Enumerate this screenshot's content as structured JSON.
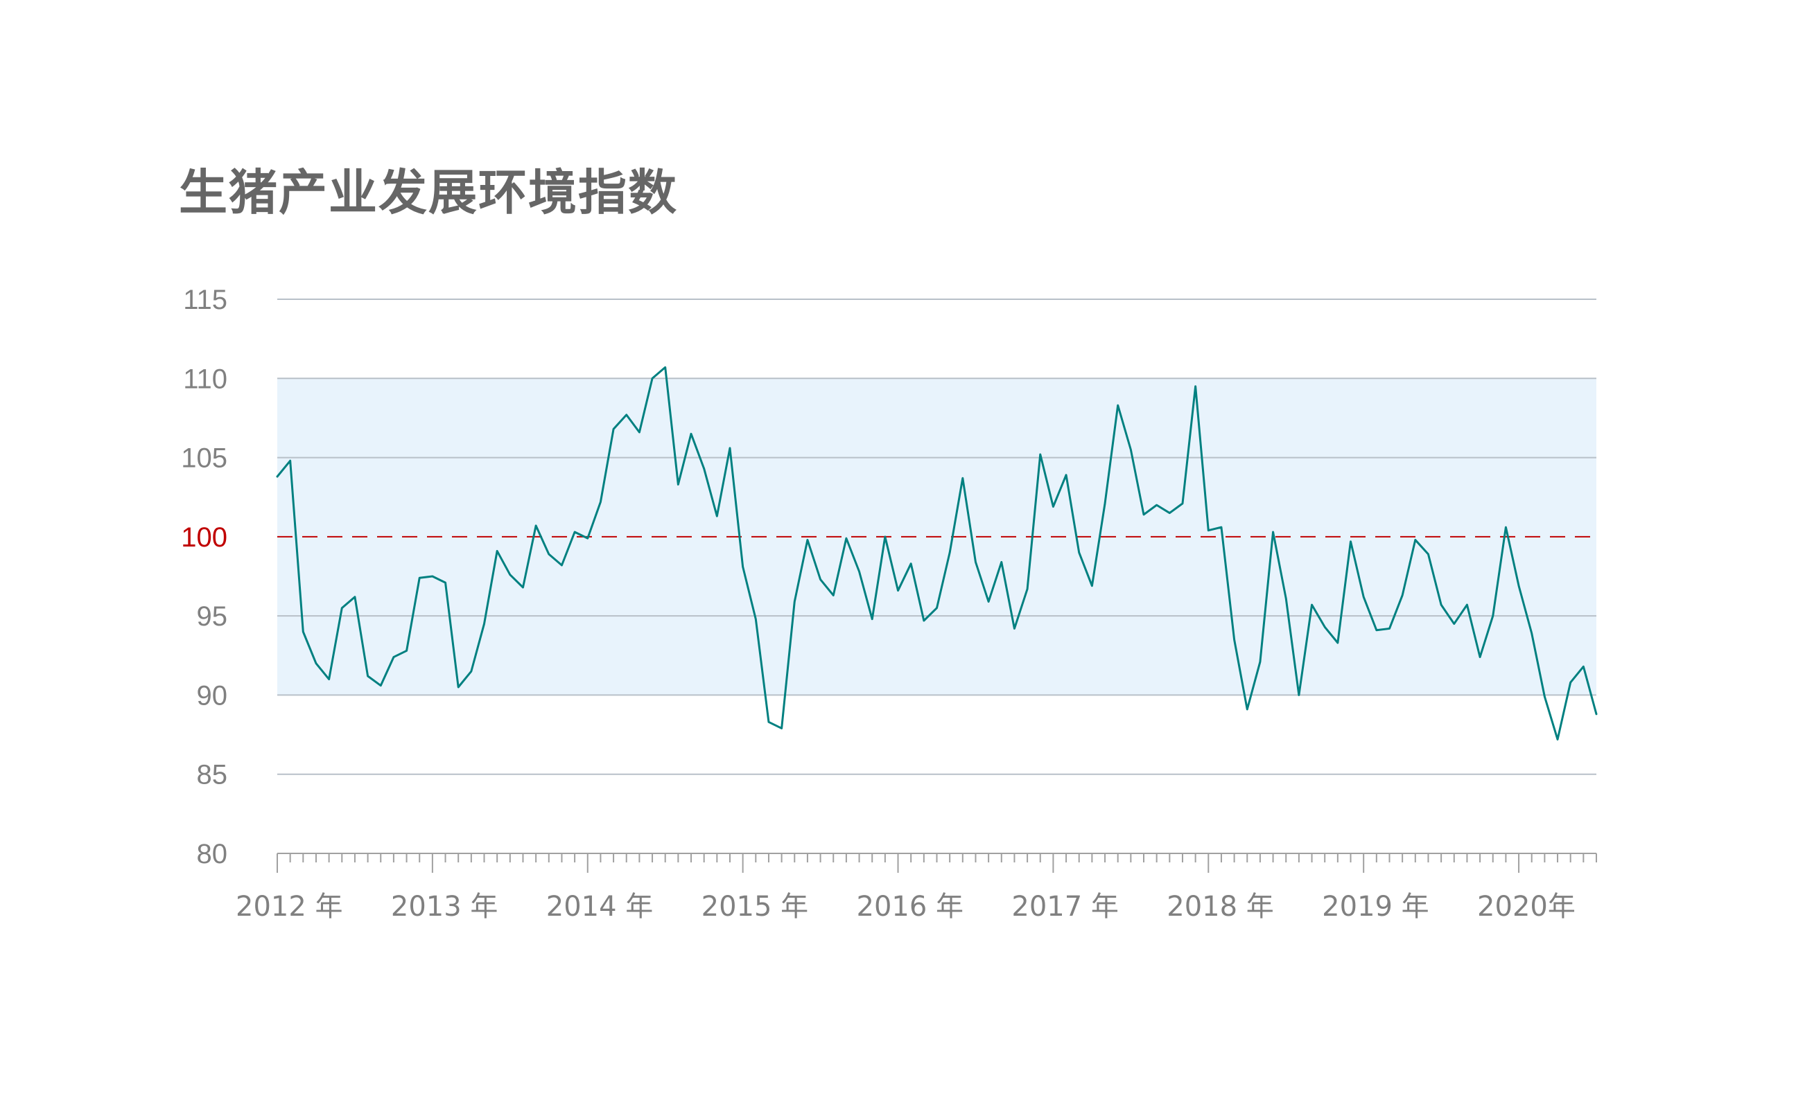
{
  "chart_data": {
    "type": "line",
    "title": "生猪产业发展环境指数",
    "xlabel": "",
    "ylabel": "",
    "ylim": [
      80,
      115
    ],
    "y_ticks": [
      "80",
      "85",
      "90",
      "95",
      "100",
      "105",
      "110",
      "115"
    ],
    "x_tick_labels": [
      "2012 年",
      "2013 年",
      "2014 年",
      "2015 年",
      "2016 年",
      "2017 年",
      "2018 年",
      "2019 年",
      "2020年"
    ],
    "x_start": "2012-01",
    "x_end": "2020-08",
    "grid": true,
    "shaded_band": [
      90,
      110
    ],
    "reference_line": 100,
    "colors": {
      "line": "#008080",
      "band": "#e8f3fc",
      "reference": "#c00000",
      "grid": "#b8c0c8",
      "axis_text": "#808080",
      "title": "#666666"
    },
    "series": [
      {
        "values": [
          103.8,
          104.8,
          94.0,
          92.0,
          91.0,
          95.5,
          96.2,
          91.2,
          90.6,
          92.4,
          92.8,
          97.4,
          97.5,
          97.1,
          90.5,
          91.5,
          94.5,
          99.1,
          97.6,
          96.8,
          100.7,
          98.9,
          98.2,
          100.3,
          99.9,
          102.2,
          106.8,
          107.7,
          106.6,
          110.0,
          110.7,
          103.3,
          106.5,
          104.3,
          101.3,
          105.6,
          98.1,
          94.8,
          88.3,
          87.9,
          95.9,
          99.8,
          97.3,
          96.3,
          99.9,
          97.8,
          94.8,
          100.0,
          96.6,
          98.3,
          94.7,
          95.5,
          99.0,
          103.7,
          98.4,
          95.9,
          98.4,
          94.2,
          96.7,
          105.2,
          101.9,
          103.9,
          99.0,
          96.9,
          102.1,
          108.3,
          105.5,
          101.4,
          102.0,
          101.5,
          102.1,
          109.5,
          100.4,
          100.6,
          93.5,
          89.1,
          92.1,
          100.3,
          96.1,
          90.0,
          95.7,
          94.3,
          93.3,
          99.7,
          96.2,
          94.1,
          94.2,
          96.3,
          99.8,
          98.9,
          95.7,
          94.5,
          95.7,
          92.4,
          95.0,
          100.6,
          96.9,
          93.9,
          89.9,
          87.2,
          90.8,
          91.8,
          88.8
        ]
      }
    ]
  }
}
